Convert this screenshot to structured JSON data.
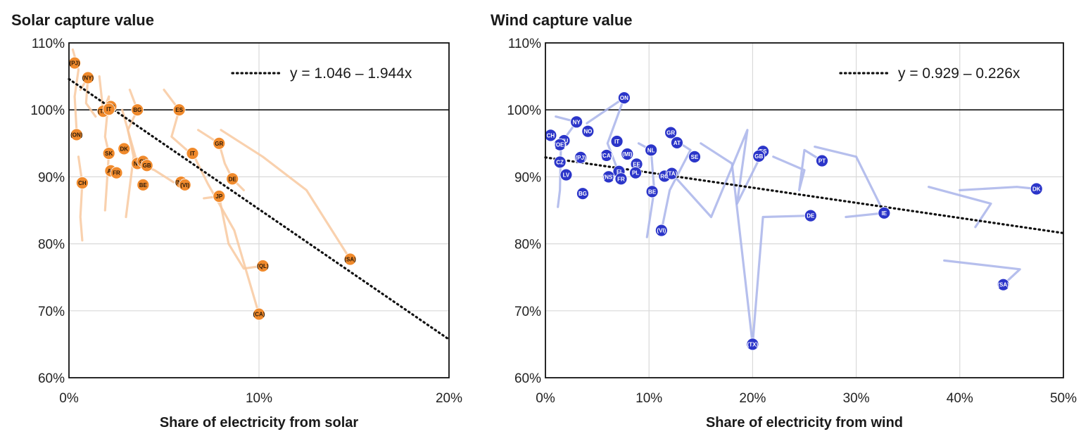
{
  "chart_data": [
    {
      "type": "scatter",
      "title": "Solar capture value",
      "xlabel": "Share of electricity from solar",
      "ylabel": "",
      "xlim": [
        0,
        20
      ],
      "ylim": [
        60,
        110
      ],
      "x_ticks": [
        0,
        10,
        20
      ],
      "x_tick_labels": [
        "0%",
        "10%",
        "20%"
      ],
      "y_ticks": [
        60,
        70,
        80,
        90,
        100,
        110
      ],
      "y_tick_labels": [
        "60%",
        "70%",
        "80%",
        "90%",
        "100%",
        "110%"
      ],
      "grid": true,
      "reference_line_y": 100,
      "point_color": "#f08a2c",
      "trail_color": "#f8c9a0",
      "trendline": {
        "intercept": 104.6,
        "slope": -1.944,
        "label": "y = 1.046 – 1.944x",
        "style": "dotted"
      },
      "points": [
        {
          "label": "(PJ)",
          "x": 0.3,
          "y": 107
        },
        {
          "label": "(NY)",
          "x": 1.0,
          "y": 104.8
        },
        {
          "label": "RO",
          "x": 2.2,
          "y": 100.5
        },
        {
          "label": "(TA)",
          "x": 1.8,
          "y": 99.8
        },
        {
          "label": "IT",
          "x": 2.1,
          "y": 100.1
        },
        {
          "label": "BG",
          "x": 3.6,
          "y": 100
        },
        {
          "label": "ES",
          "x": 5.8,
          "y": 100
        },
        {
          "label": "(ON)",
          "x": 0.4,
          "y": 96.3
        },
        {
          "label": "SK",
          "x": 2.1,
          "y": 93.5
        },
        {
          "label": "DK",
          "x": 2.9,
          "y": 94.2
        },
        {
          "label": "IT",
          "x": 6.5,
          "y": 93.5
        },
        {
          "label": "GR",
          "x": 7.9,
          "y": 95
        },
        {
          "label": "NL",
          "x": 3.6,
          "y": 92
        },
        {
          "label": "CZ",
          "x": 3.9,
          "y": 92.3
        },
        {
          "label": "GB",
          "x": 4.1,
          "y": 91.7
        },
        {
          "label": "AT",
          "x": 2.2,
          "y": 90.9
        },
        {
          "label": "FR",
          "x": 2.5,
          "y": 90.6
        },
        {
          "label": "CH",
          "x": 0.7,
          "y": 89.1
        },
        {
          "label": "BE",
          "x": 3.9,
          "y": 88.8
        },
        {
          "label": "(NS)",
          "x": 5.9,
          "y": 89.2
        },
        {
          "label": "(VI)",
          "x": 6.1,
          "y": 88.8
        },
        {
          "label": "DE",
          "x": 8.6,
          "y": 89.7
        },
        {
          "label": "JP",
          "x": 7.9,
          "y": 87.1
        },
        {
          "label": "(SA)",
          "x": 14.8,
          "y": 77.7
        },
        {
          "label": "(QL)",
          "x": 10.2,
          "y": 76.7
        },
        {
          "label": "(CA)",
          "x": 10.0,
          "y": 69.5
        }
      ],
      "trails": [
        [
          [
            0.2,
            109
          ],
          [
            0.5,
            106
          ],
          [
            0.3,
            102
          ],
          [
            0.4,
            97
          ]
        ],
        [
          [
            0.6,
            103
          ],
          [
            1.0,
            104.8
          ],
          [
            0.9,
            101
          ],
          [
            1.4,
            99
          ]
        ],
        [
          [
            1.6,
            105
          ],
          [
            1.8,
            99.8
          ],
          [
            2.1,
            102
          ],
          [
            1.9,
            96
          ],
          [
            2.1,
            93.5
          ],
          [
            1.9,
            85
          ]
        ],
        [
          [
            3.2,
            103
          ],
          [
            3.6,
            100
          ],
          [
            3.1,
            97
          ],
          [
            3.4,
            93
          ],
          [
            3.0,
            84
          ]
        ],
        [
          [
            5.0,
            103
          ],
          [
            5.8,
            100
          ],
          [
            5.4,
            96
          ],
          [
            6.2,
            94
          ]
        ],
        [
          [
            0.5,
            93
          ],
          [
            0.7,
            89.1
          ],
          [
            0.6,
            84
          ],
          [
            0.7,
            80.5
          ]
        ],
        [
          [
            2.8,
            100
          ],
          [
            3.6,
            92
          ],
          [
            4.5,
            91
          ],
          [
            5.5,
            89.2
          ]
        ],
        [
          [
            6.8,
            97
          ],
          [
            7.9,
            95
          ],
          [
            8.2,
            92
          ],
          [
            8.6,
            89.7
          ],
          [
            9.2,
            88
          ]
        ],
        [
          [
            7.1,
            86.8
          ],
          [
            7.9,
            87.1
          ],
          [
            8.4,
            80
          ],
          [
            9.2,
            76.3
          ],
          [
            10.2,
            76.7
          ]
        ],
        [
          [
            8.0,
            97
          ],
          [
            10.2,
            93
          ],
          [
            12.5,
            88
          ],
          [
            14.8,
            77.7
          ]
        ],
        [
          [
            6.6,
            93
          ],
          [
            7.3,
            89
          ],
          [
            8.7,
            82
          ],
          [
            10.0,
            69.5
          ]
        ]
      ]
    },
    {
      "type": "scatter",
      "title": "Wind capture value",
      "xlabel": "Share of electricity from wind",
      "ylabel": "",
      "xlim": [
        0,
        50
      ],
      "ylim": [
        60,
        110
      ],
      "x_ticks": [
        0,
        10,
        20,
        30,
        40,
        50
      ],
      "x_tick_labels": [
        "0%",
        "10%",
        "20%",
        "30%",
        "40%",
        "50%"
      ],
      "y_ticks": [
        60,
        70,
        80,
        90,
        100,
        110
      ],
      "y_tick_labels": [
        "60%",
        "70%",
        "80%",
        "90%",
        "100%",
        "110%"
      ],
      "grid": true,
      "reference_line_y": 100,
      "point_color": "#2b35c9",
      "trail_color": "#a9b4ea",
      "trendline": {
        "intercept": 92.9,
        "slope": -0.226,
        "label": "y = 0.929 – 0.226x",
        "style": "dotted"
      },
      "points": [
        {
          "label": "ON",
          "x": 7.6,
          "y": 101.8
        },
        {
          "label": "NY",
          "x": 3.0,
          "y": 98.2
        },
        {
          "label": "NO",
          "x": 4.1,
          "y": 96.8
        },
        {
          "label": "CH",
          "x": 0.5,
          "y": 96.2
        },
        {
          "label": "HU",
          "x": 1.8,
          "y": 95.4
        },
        {
          "label": "(OE)",
          "x": 1.4,
          "y": 94.8
        },
        {
          "label": "IT",
          "x": 6.9,
          "y": 95.3
        },
        {
          "label": "GR",
          "x": 12.1,
          "y": 96.6
        },
        {
          "label": "AT",
          "x": 12.7,
          "y": 95.1
        },
        {
          "label": "NL",
          "x": 10.2,
          "y": 94.0
        },
        {
          "label": "(CA)",
          "x": 5.9,
          "y": 93.2
        },
        {
          "label": "(MI)",
          "x": 7.9,
          "y": 93.4
        },
        {
          "label": "(PJ)",
          "x": 3.4,
          "y": 92.9
        },
        {
          "label": "SE",
          "x": 14.4,
          "y": 93.0
        },
        {
          "label": "ES",
          "x": 21.0,
          "y": 93.8
        },
        {
          "label": "GB",
          "x": 20.6,
          "y": 93.1
        },
        {
          "label": "PT",
          "x": 26.7,
          "y": 92.4
        },
        {
          "label": "CZ",
          "x": 1.4,
          "y": 92.2
        },
        {
          "label": "EE",
          "x": 8.8,
          "y": 91.9
        },
        {
          "label": "FI",
          "x": 7.1,
          "y": 90.8
        },
        {
          "label": "PL",
          "x": 8.7,
          "y": 90.6
        },
        {
          "label": "RO",
          "x": 11.5,
          "y": 90.1
        },
        {
          "label": "(TA)",
          "x": 12.2,
          "y": 90.5
        },
        {
          "label": "LV",
          "x": 2.0,
          "y": 90.3
        },
        {
          "label": "(NS)",
          "x": 6.1,
          "y": 90.0
        },
        {
          "label": "FR",
          "x": 7.3,
          "y": 89.7
        },
        {
          "label": "BG",
          "x": 3.6,
          "y": 87.5
        },
        {
          "label": "BE",
          "x": 10.3,
          "y": 87.8
        },
        {
          "label": "DK",
          "x": 47.4,
          "y": 88.2
        },
        {
          "label": "IE",
          "x": 32.7,
          "y": 84.6
        },
        {
          "label": "DE",
          "x": 25.6,
          "y": 84.2
        },
        {
          "label": "(VI)",
          "x": 11.2,
          "y": 82.0
        },
        {
          "label": "(SA)",
          "x": 44.2,
          "y": 73.9
        },
        {
          "label": "(TX)",
          "x": 20.0,
          "y": 65.0
        }
      ],
      "trails": [
        [
          [
            1.0,
            99
          ],
          [
            3.0,
            98.2
          ],
          [
            1.5,
            95
          ],
          [
            1.4,
            88
          ],
          [
            1.2,
            85.5
          ]
        ],
        [
          [
            4.0,
            98
          ],
          [
            7.6,
            101.8
          ],
          [
            6.0,
            95
          ],
          [
            7.3,
            89.7
          ]
        ],
        [
          [
            9.0,
            95
          ],
          [
            10.2,
            94
          ],
          [
            10.5,
            88
          ],
          [
            9.8,
            81
          ]
        ],
        [
          [
            12.0,
            96
          ],
          [
            14.0,
            94
          ],
          [
            12.0,
            88
          ],
          [
            11.2,
            82
          ]
        ],
        [
          [
            12.5,
            90
          ],
          [
            16.0,
            84
          ],
          [
            19.5,
            97
          ],
          [
            18.5,
            86
          ],
          [
            21.0,
            93.8
          ]
        ],
        [
          [
            15.0,
            95
          ],
          [
            18.0,
            92
          ],
          [
            20.0,
            65
          ],
          [
            21.0,
            84
          ],
          [
            25.6,
            84.2
          ]
        ],
        [
          [
            22.0,
            93
          ],
          [
            25.0,
            91
          ],
          [
            24.5,
            88
          ],
          [
            25.0,
            94
          ],
          [
            26.7,
            92.4
          ]
        ],
        [
          [
            26.0,
            94.5
          ],
          [
            30.0,
            93
          ],
          [
            32.7,
            84.6
          ],
          [
            29.0,
            84
          ]
        ],
        [
          [
            37.0,
            88.5
          ],
          [
            43.0,
            86
          ],
          [
            41.5,
            82.5
          ]
        ],
        [
          [
            40.0,
            88
          ],
          [
            45.5,
            88.5
          ],
          [
            47.4,
            88.2
          ]
        ],
        [
          [
            38.5,
            77.5
          ],
          [
            45.8,
            76.2
          ],
          [
            44.2,
            73.9
          ]
        ]
      ]
    }
  ]
}
